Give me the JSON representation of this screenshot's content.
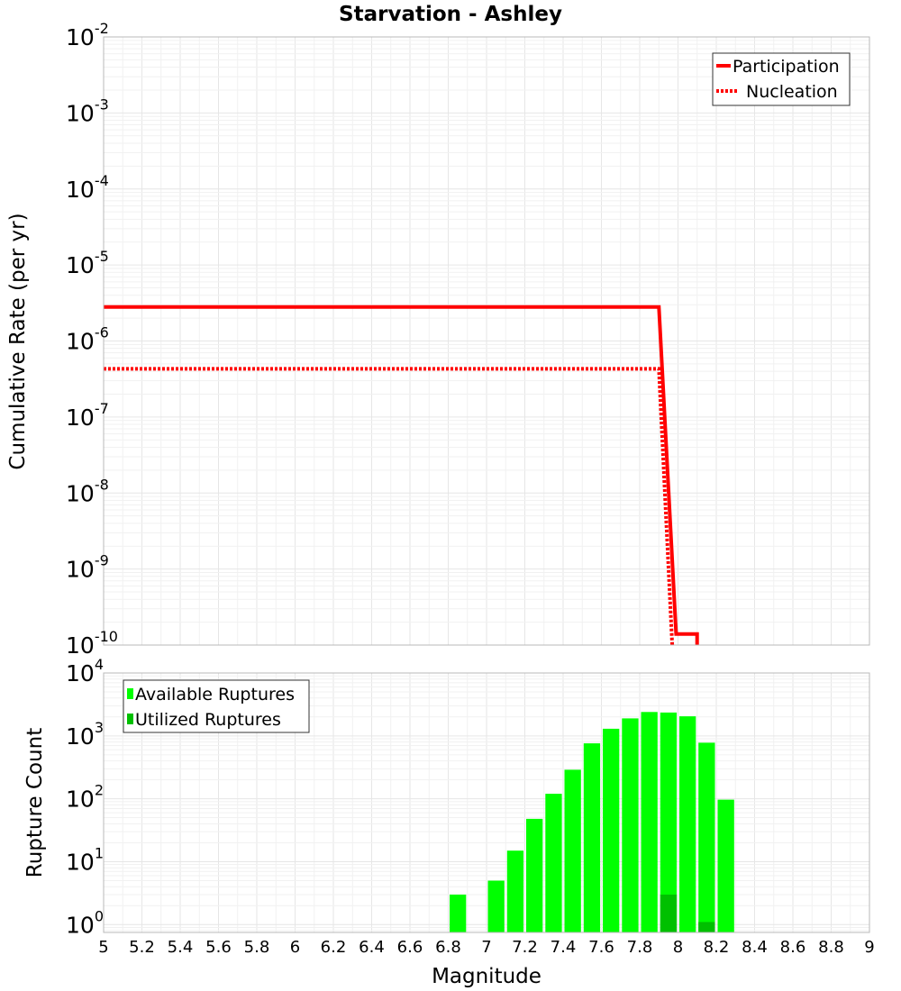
{
  "chart_data": {
    "type": "line+bar",
    "title": "Starvation - Ashley",
    "xlabel": "Magnitude",
    "xlim": [
      5,
      9
    ],
    "x_ticks": [
      "5",
      "5.2",
      "5.4",
      "5.6",
      "5.8",
      "6",
      "6.2",
      "6.4",
      "6.6",
      "6.8",
      "7",
      "7.2",
      "7.4",
      "7.6",
      "7.8",
      "8",
      "8.2",
      "8.4",
      "8.6",
      "8.8",
      "9"
    ],
    "top_panel": {
      "type": "line",
      "ylabel": "Cumulative Rate (per yr)",
      "yscale": "log",
      "ylim": [
        1e-10,
        0.01
      ],
      "y_tick_base": "10",
      "y_tick_exponents": [
        "-2",
        "-3",
        "-4",
        "-5",
        "-6",
        "-7",
        "-8",
        "-9",
        "-10"
      ],
      "legend": [
        "Participation",
        "Nucleation"
      ],
      "legend_position": "top-right",
      "series": [
        {
          "name": "Participation",
          "style": "solid",
          "color": "#ff0000",
          "points": [
            [
              5.0,
              2.8e-06
            ],
            [
              7.9,
              2.8e-06
            ],
            [
              7.99,
              1.4e-10
            ],
            [
              8.1,
              1.4e-10
            ],
            [
              8.1,
              1e-10
            ]
          ]
        },
        {
          "name": "Nucleation",
          "style": "dotted",
          "color": "#ff0000",
          "points": [
            [
              5.0,
              4.3e-07
            ],
            [
              7.9,
              4.3e-07
            ],
            [
              7.97,
              1e-10
            ]
          ]
        }
      ]
    },
    "bottom_panel": {
      "type": "bar",
      "ylabel": "Rupture Count",
      "yscale": "log",
      "ylim": [
        0.75,
        10000
      ],
      "y_tick_base": "10",
      "y_tick_exponents": [
        "4",
        "3",
        "2",
        "1",
        "0"
      ],
      "bin_width": 0.1,
      "legend": [
        "Available Ruptures",
        "Utilized Ruptures"
      ],
      "legend_position": "top-left",
      "series": [
        {
          "name": "Available Ruptures",
          "color": "#00ff00",
          "x": [
            6.85,
            7.05,
            7.15,
            7.25,
            7.35,
            7.45,
            7.55,
            7.65,
            7.75,
            7.85,
            7.95,
            8.05,
            8.15,
            8.25
          ],
          "values": [
            3,
            5,
            15,
            48,
            120,
            290,
            760,
            1300,
            1900,
            2400,
            2350,
            2050,
            780,
            97
          ]
        },
        {
          "name": "Utilized Ruptures",
          "color": "#00c000",
          "x": [
            7.95,
            8.15
          ],
          "values": [
            3,
            1.1
          ]
        }
      ]
    }
  }
}
